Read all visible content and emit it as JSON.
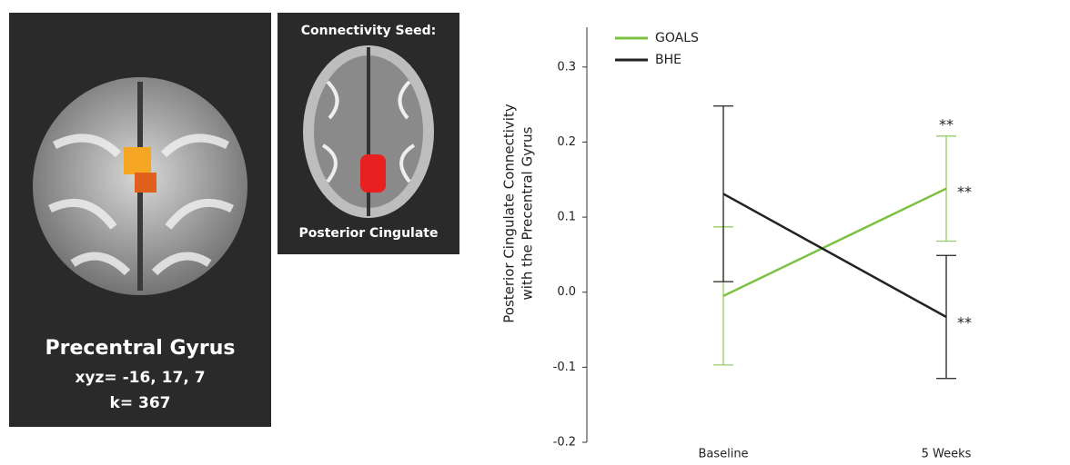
{
  "brain_panels": {
    "left": {
      "title": "Precentral Gyrus",
      "coords": "xyz= -16, 17, 7",
      "k": "k= 367"
    },
    "seed": {
      "label": "Connectivity Seed:",
      "region": "Posterior Cingulate"
    }
  },
  "chart_data": {
    "type": "line",
    "y_label": [
      "Posterior Cingulate Connectivity",
      "with the Precentral Gyrus"
    ],
    "categories": [
      "Baseline",
      "5 Weeks"
    ],
    "series": [
      {
        "name": "GOALS",
        "color": "#7cc142",
        "values": [
          -0.005,
          0.138
        ],
        "errors": [
          0.092,
          0.07
        ]
      },
      {
        "name": "BHE",
        "color": "#222222",
        "values": [
          0.131,
          -0.033
        ],
        "errors": [
          0.117,
          0.082
        ]
      }
    ],
    "annotations": [
      "**",
      "**",
      "**"
    ],
    "ylim": [
      -0.2,
      0.353
    ],
    "yticks": [
      0.3,
      0.2,
      0.1,
      {
        "value": 0,
        "label": "0.0"
      },
      -0.1,
      -0.2
    ],
    "legend": "top-left"
  }
}
